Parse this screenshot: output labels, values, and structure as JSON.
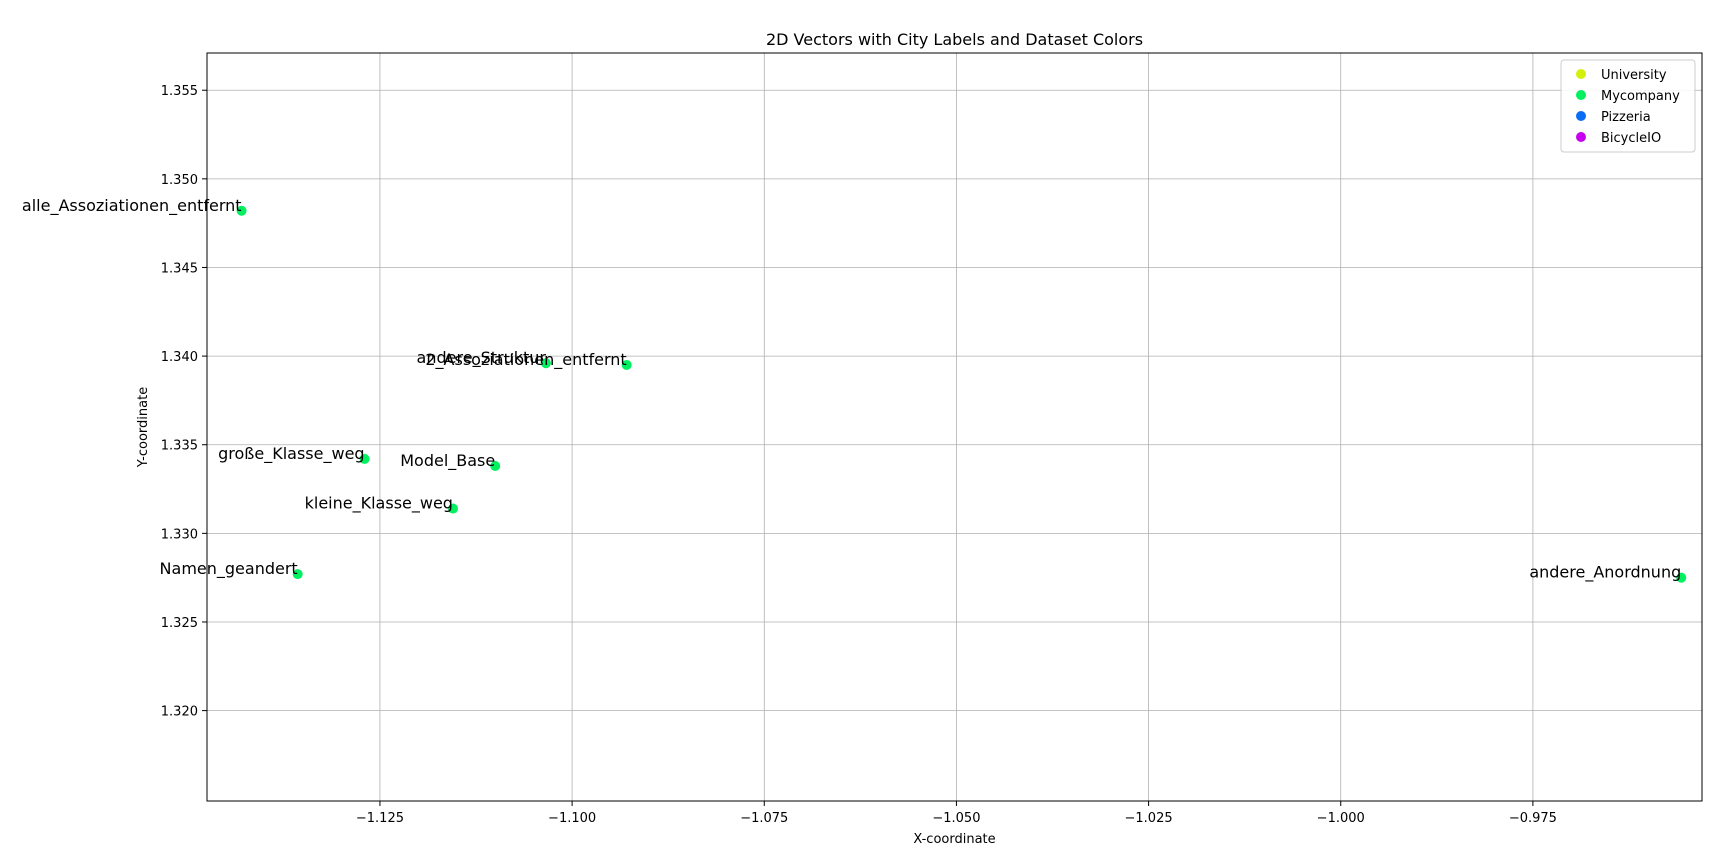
{
  "chart_data": {
    "type": "scatter",
    "title": "2D Vectors with City Labels and Dataset Colors",
    "xlabel": "X-coordinate",
    "ylabel": "Y-coordinate",
    "xlim": [
      -1.1475,
      -0.953
    ],
    "ylim": [
      1.3149,
      1.3571
    ],
    "xticks": [
      -1.125,
      -1.1,
      -1.075,
      -1.05,
      -1.025,
      -1.0,
      -0.975
    ],
    "xtick_labels": [
      "−1.125",
      "−1.100",
      "−1.075",
      "−1.050",
      "−1.025",
      "−1.000",
      "−0.975"
    ],
    "yticks": [
      1.32,
      1.325,
      1.33,
      1.335,
      1.34,
      1.345,
      1.35,
      1.355
    ],
    "ytick_labels": [
      "1.320",
      "1.325",
      "1.330",
      "1.335",
      "1.340",
      "1.345",
      "1.350",
      "1.355"
    ],
    "grid": true,
    "legend_position": "top-right",
    "series": [
      {
        "name": "University",
        "color": "#d4f00a",
        "points": []
      },
      {
        "name": "Mycompany",
        "color": "#00f060",
        "points": [
          {
            "x": -1.143,
            "y": 1.3482,
            "label": "alle_Assoziationen_entfernt"
          },
          {
            "x": -1.1034,
            "y": 1.3396,
            "label": "andere_Struktur"
          },
          {
            "x": -1.0929,
            "y": 1.3395,
            "label": "2_Assoziationen_entfernt"
          },
          {
            "x": -1.127,
            "y": 1.3342,
            "label": "große_Klasse_weg"
          },
          {
            "x": -1.11,
            "y": 1.3338,
            "label": "Model_Base"
          },
          {
            "x": -1.1155,
            "y": 1.3314,
            "label": "kleine_Klasse_weg"
          },
          {
            "x": -1.1357,
            "y": 1.3277,
            "label": "Namen_geandert"
          },
          {
            "x": -0.9557,
            "y": 1.3275,
            "label": "andere_Anordnung"
          }
        ]
      },
      {
        "name": "Pizzeria",
        "color": "#0a6cf5",
        "points": []
      },
      {
        "name": "BicycleIO",
        "color": "#c800f0",
        "points": []
      }
    ]
  }
}
